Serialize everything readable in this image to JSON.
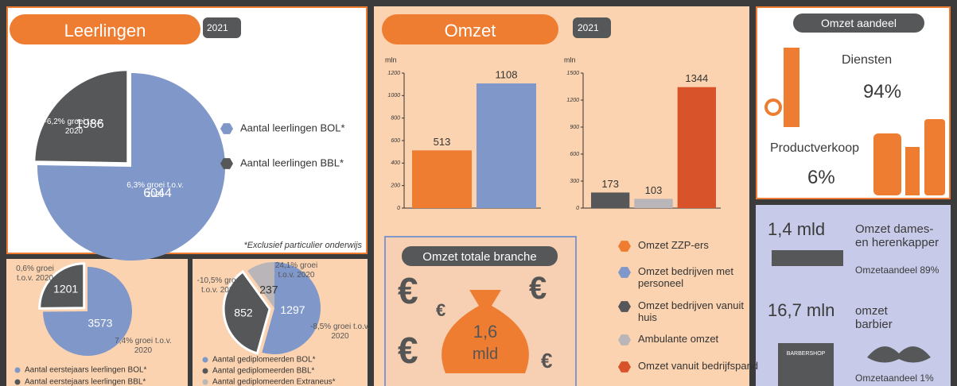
{
  "leerlingen": {
    "title": "Leerlingen",
    "year": "2021",
    "pie": {
      "type": "pie",
      "categories": [
        "Aantal leerlingen BOL*",
        "Aantal leerlingen BBL*"
      ],
      "values": [
        6044,
        1986
      ],
      "colors": [
        "#7f97c9",
        "#555759"
      ],
      "notes": [
        "6,3% groei t.o.v. 2020",
        "-6,2% groei t.o.v. 2020"
      ]
    },
    "footnote": "*Exclusief particulier onderwijs"
  },
  "eerstejaars": {
    "type": "pie",
    "categories": [
      "Aantal eerstejaars leerlingen BOL*",
      "Aantal eerstejaars leerlingen BBL*"
    ],
    "values": [
      3573,
      1201
    ],
    "colors": [
      "#7f97c9",
      "#555759"
    ],
    "notes": [
      "7,4% groei t.o.v. 2020",
      "0,6% groei t.o.v. 2020"
    ]
  },
  "gediplomeerden": {
    "type": "pie",
    "categories": [
      "Aantal gediplomeerden BOL*",
      "Aantal gediplomeerden BBL*",
      "Aantal gediplomeerden Extraneus*"
    ],
    "values": [
      1297,
      852,
      237
    ],
    "colors": [
      "#7f97c9",
      "#555759",
      "#b9b5b8"
    ],
    "notes": [
      "-8,5% groei t.o.v. 2020",
      "-10,5% groei t.o.v. 2020",
      "24,1% groei t.o.v. 2020"
    ]
  },
  "omzet": {
    "title": "Omzet",
    "year": "2021",
    "charts": [
      {
        "type": "bar",
        "unit": "mln",
        "values": [
          513,
          1108
        ],
        "colors": [
          "#ee7d31",
          "#7f97c9"
        ],
        "ylim": [
          0,
          1200
        ],
        "yticks": [
          0,
          200,
          400,
          600,
          800,
          1000,
          1200
        ]
      },
      {
        "type": "bar",
        "unit": "mln",
        "values": [
          173,
          103,
          1344
        ],
        "colors": [
          "#555759",
          "#b9b5b8",
          "#d9532a"
        ],
        "ylim": [
          0,
          1500
        ],
        "yticks": [
          0,
          300,
          600,
          900,
          1200,
          1500
        ]
      }
    ],
    "legend": [
      {
        "name": "Omzet ZZP-ers",
        "color": "#ee7d31"
      },
      {
        "name": "Omzet bedrijven met personeel",
        "color": "#7f97c9"
      },
      {
        "name": "Omzet bedrijven vanuit huis",
        "color": "#555759"
      },
      {
        "name": "Ambulante omzet",
        "color": "#b9b5b8"
      },
      {
        "name": "Omzet vanuit bedrijfspand",
        "color": "#d9532a"
      }
    ]
  },
  "totale_branche": {
    "title": "Omzet totale branche",
    "value": "1,6",
    "unit": "mld",
    "symbol": "€"
  },
  "aandeel": {
    "title": "Omzet aandeel",
    "items": [
      {
        "label": "Diensten",
        "value": "94%"
      },
      {
        "label": "Productverkoop",
        "value": "6%"
      }
    ]
  },
  "kappers": {
    "dames_heren": {
      "value": "1,4 mld",
      "label": "Omzet dames- en herenkapper",
      "share": "Omzetaandeel 89%"
    },
    "barbier": {
      "value": "16,7 mln",
      "label": "omzet barbier",
      "share": "Omzetaandeel 1%",
      "sign": "BARBERSHOP"
    }
  }
}
